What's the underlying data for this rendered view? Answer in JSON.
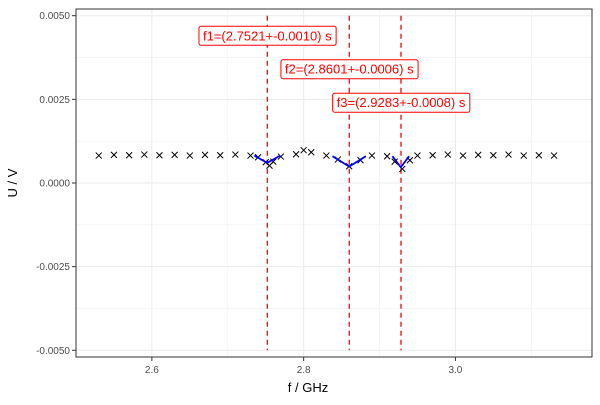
{
  "chart_data": {
    "type": "scatter",
    "title": "",
    "xlabel": "f / GHz",
    "ylabel": "U / V",
    "xlim": [
      2.5,
      3.18
    ],
    "ylim": [
      -0.0052,
      0.0052
    ],
    "x_ticks": [
      2.6,
      2.8,
      3.0
    ],
    "x_tick_labels": [
      "2.6",
      "2.8",
      "3.0"
    ],
    "y_ticks": [
      -0.005,
      -0.0025,
      0.0,
      0.0025,
      0.005
    ],
    "y_tick_labels": [
      "-0.0050",
      "-0.0025",
      "0.0000",
      "0.0025",
      "0.0050"
    ],
    "grid": true,
    "series": [
      {
        "marker": "x",
        "color": "#000000",
        "points": [
          [
            2.53,
            0.00082
          ],
          [
            2.55,
            0.00084
          ],
          [
            2.57,
            0.00083
          ],
          [
            2.59,
            0.00085
          ],
          [
            2.61,
            0.00083
          ],
          [
            2.63,
            0.00084
          ],
          [
            2.65,
            0.00082
          ],
          [
            2.67,
            0.00084
          ],
          [
            2.69,
            0.00083
          ],
          [
            2.71,
            0.00085
          ],
          [
            2.73,
            0.00082
          ],
          [
            2.74,
            0.00077
          ],
          [
            2.75,
            0.00062
          ],
          [
            2.755,
            0.00052
          ],
          [
            2.76,
            0.00064
          ],
          [
            2.77,
            0.00079
          ],
          [
            2.79,
            0.00086
          ],
          [
            2.8,
            0.00098
          ],
          [
            2.81,
            0.00092
          ],
          [
            2.83,
            0.00082
          ],
          [
            2.845,
            0.0007
          ],
          [
            2.86,
            0.0005
          ],
          [
            2.875,
            0.00068
          ],
          [
            2.89,
            0.00082
          ],
          [
            2.91,
            0.0008
          ],
          [
            2.92,
            0.00064
          ],
          [
            2.93,
            0.00042
          ],
          [
            2.94,
            0.00068
          ],
          [
            2.95,
            0.00082
          ],
          [
            2.97,
            0.00083
          ],
          [
            2.99,
            0.00085
          ],
          [
            3.01,
            0.00082
          ],
          [
            3.03,
            0.00084
          ],
          [
            3.05,
            0.00083
          ],
          [
            3.07,
            0.00085
          ],
          [
            3.09,
            0.00082
          ],
          [
            3.11,
            0.00083
          ],
          [
            3.13,
            0.00082
          ]
        ]
      },
      {
        "type": "line",
        "color": "#0000ff",
        "points": [
          [
            2.735,
            0.00082
          ],
          [
            2.752,
            0.0006
          ],
          [
            2.769,
            0.00082
          ]
        ]
      },
      {
        "type": "line",
        "color": "#0000ff",
        "points": [
          [
            2.838,
            0.0008
          ],
          [
            2.86,
            0.00049
          ],
          [
            2.882,
            0.0008
          ]
        ]
      },
      {
        "type": "line",
        "color": "#0000ff",
        "points": [
          [
            2.917,
            0.0008
          ],
          [
            2.928,
            0.00047
          ],
          [
            2.939,
            0.0008
          ]
        ]
      }
    ],
    "vlines": [
      {
        "x": 2.7521,
        "color": "#ff0000",
        "style": "dashed"
      },
      {
        "x": 2.8601,
        "color": "#ff0000",
        "style": "dashed"
      },
      {
        "x": 2.9283,
        "color": "#ff0000",
        "style": "dashed"
      }
    ],
    "annotations": [
      {
        "text": "f1=(2.7521+-0.0010) s",
        "x": 2.7521,
        "y": 0.0044,
        "color": "#ff0000"
      },
      {
        "text": "f2=(2.8601+-0.0006) s",
        "x": 2.8601,
        "y": 0.0034,
        "color": "#ff0000"
      },
      {
        "text": "f3=(2.9283+-0.0008) s",
        "x": 2.9283,
        "y": 0.0024,
        "color": "#ff0000"
      }
    ]
  }
}
